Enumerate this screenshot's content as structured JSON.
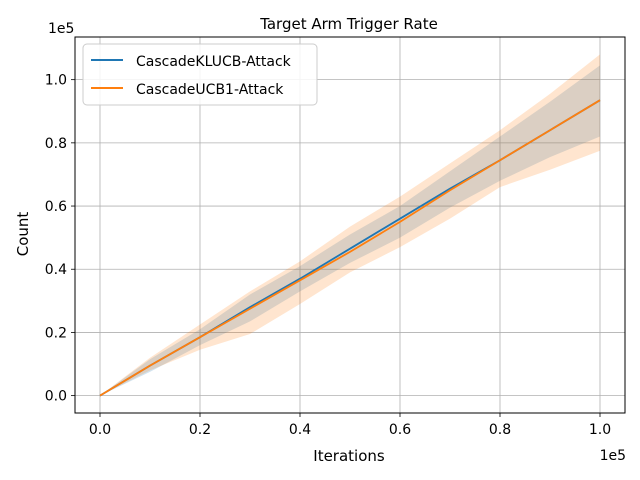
{
  "chart_data": {
    "type": "line",
    "title": "Target Arm Trigger Rate",
    "xlabel": "Iterations",
    "ylabel": "Count",
    "x_offset_text": "1e5",
    "y_offset_text": "1e5",
    "x_ticks": [
      "0.0",
      "0.2",
      "0.4",
      "0.6",
      "0.8",
      "1.0"
    ],
    "y_ticks": [
      "0.0",
      "0.2",
      "0.4",
      "0.6",
      "0.8",
      "1.0"
    ],
    "xlim": [
      -0.05,
      1.05
    ],
    "ylim": [
      -0.055,
      1.135
    ],
    "grid": true,
    "legend_position": "upper-left",
    "x": [
      0,
      0.1,
      0.2,
      0.3,
      0.4,
      0.5,
      0.6,
      0.7,
      0.8,
      0.9,
      1.0
    ],
    "series": [
      {
        "name": "CascadeKLUCB-Attack",
        "color": "#1f77b4",
        "values": [
          0,
          0.095,
          0.185,
          0.28,
          0.37,
          0.465,
          0.56,
          0.655,
          0.745,
          0.84,
          0.935
        ],
        "band_low": [
          0,
          0.075,
          0.16,
          0.235,
          0.33,
          0.42,
          0.5,
          0.595,
          0.68,
          0.755,
          0.82
        ],
        "band_high": [
          0,
          0.115,
          0.21,
          0.32,
          0.41,
          0.51,
          0.6,
          0.71,
          0.82,
          0.93,
          1.045
        ]
      },
      {
        "name": "CascadeUCB1-Attack",
        "color": "#ff7f0e",
        "values": [
          0,
          0.095,
          0.185,
          0.275,
          0.365,
          0.455,
          0.55,
          0.65,
          0.745,
          0.84,
          0.935
        ],
        "band_low": [
          0,
          0.08,
          0.145,
          0.195,
          0.29,
          0.39,
          0.47,
          0.56,
          0.66,
          0.715,
          0.775
        ],
        "band_high": [
          0,
          0.12,
          0.225,
          0.33,
          0.425,
          0.535,
          0.63,
          0.735,
          0.84,
          0.955,
          1.08
        ]
      }
    ]
  }
}
